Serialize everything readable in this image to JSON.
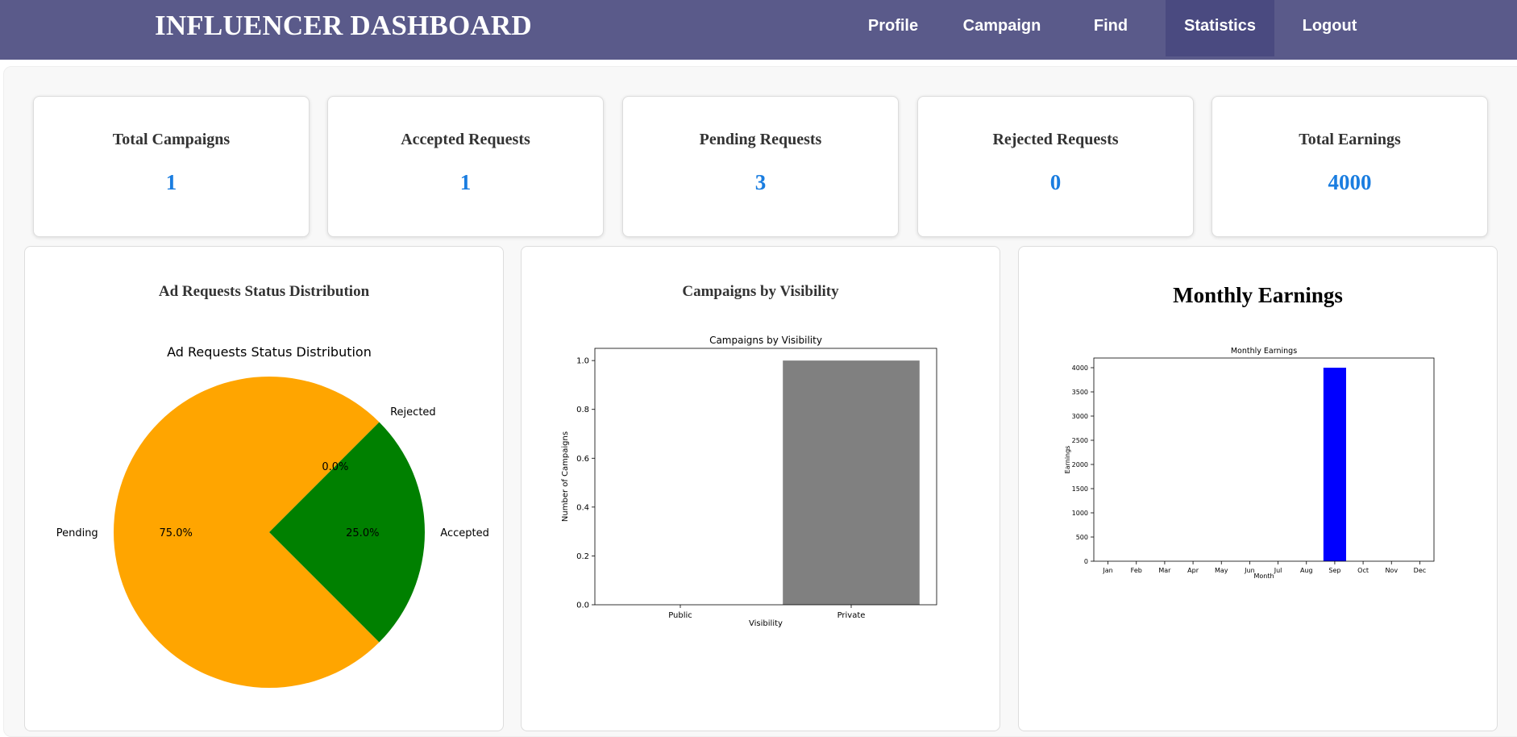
{
  "navbar": {
    "brand": "INFLUENCER DASHBOARD",
    "items": [
      {
        "label": "Profile"
      },
      {
        "label": "Campaign"
      },
      {
        "label": "Find"
      },
      {
        "label": "Statistics",
        "active": true
      },
      {
        "label": "Logout"
      }
    ],
    "bg_color": "#5a5a8a",
    "active_color": "#4a4a80"
  },
  "stats": [
    {
      "title": "Total Campaigns",
      "value": "1"
    },
    {
      "title": "Accepted Requests",
      "value": "1"
    },
    {
      "title": "Pending Requests",
      "value": "3"
    },
    {
      "title": "Rejected Requests",
      "value": "0"
    },
    {
      "title": "Total Earnings",
      "value": "4000"
    }
  ],
  "stat_value_color": "#1a7de0",
  "cards": {
    "pie_heading": "Ad Requests Status Distribution",
    "bar_heading": "Campaigns by Visibility",
    "earn_heading": "Monthly Earnings"
  },
  "chart_data": [
    {
      "type": "pie",
      "title": "Ad Requests Status Distribution",
      "slices": [
        {
          "label": "Pending",
          "value": 3,
          "pct": "75.0%",
          "color": "#ffa500"
        },
        {
          "label": "Accepted",
          "value": 1,
          "pct": "25.0%",
          "color": "#008000"
        },
        {
          "label": "Rejected",
          "value": 0,
          "pct": "0.0%",
          "color": "#ff0000"
        }
      ]
    },
    {
      "type": "bar",
      "title": "Campaigns by Visibility",
      "categories": [
        "Public",
        "Private"
      ],
      "values": [
        0,
        1
      ],
      "xlabel": "Visibility",
      "ylabel": "Number of Campaigns",
      "ylim": [
        0,
        1.05
      ],
      "yticks": [
        "0.0",
        "0.2",
        "0.4",
        "0.6",
        "0.8",
        "1.0"
      ],
      "bar_color": "#808080"
    },
    {
      "type": "bar",
      "title": "Monthly Earnings",
      "categories": [
        "Jan",
        "Feb",
        "Mar",
        "Apr",
        "May",
        "Jun",
        "Jul",
        "Aug",
        "Sep",
        "Oct",
        "Nov",
        "Dec"
      ],
      "values": [
        0,
        0,
        0,
        0,
        0,
        0,
        0,
        0,
        4000,
        0,
        0,
        0
      ],
      "xlabel": "Month",
      "ylabel": "Earnings",
      "ylim": [
        0,
        4200
      ],
      "yticks": [
        "0",
        "500",
        "1000",
        "1500",
        "2000",
        "2500",
        "3000",
        "3500",
        "4000"
      ],
      "bar_color": "#0000ff"
    }
  ]
}
